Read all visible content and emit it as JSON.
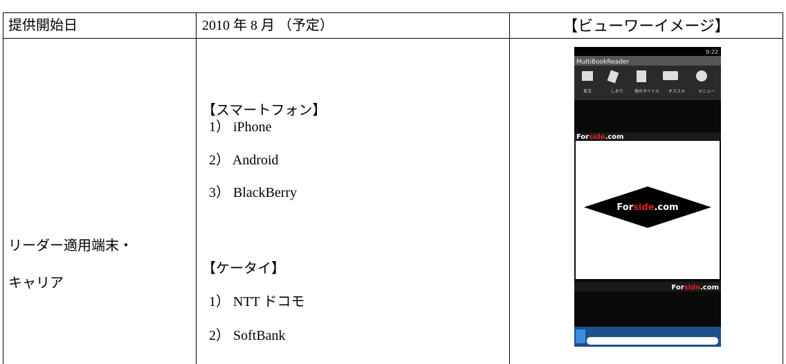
{
  "table": {
    "header": [
      "提供開始日",
      "2010 年 8 月 （予定）",
      "【ビューワーイメージ】"
    ],
    "row": {
      "label": [
        "リーダー適用端末・",
        "キャリア"
      ],
      "items": [
        "【スマートフォン】",
        "1） iPhone",
        "2） Android",
        "3） BlackBerry",
        "【ケータイ】",
        "1） NTT ドコモ",
        "2） SoftBank"
      ]
    }
  },
  "phone": {
    "time": "9:22",
    "app_title": "MultiBookReader",
    "menu": [
      "目次",
      "しおり",
      "他のタイトル",
      "オススメ",
      "メニュー"
    ],
    "logo": [
      "For",
      "side",
      ".com"
    ]
  }
}
